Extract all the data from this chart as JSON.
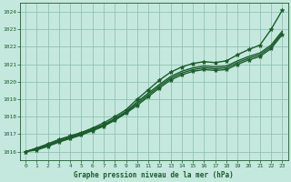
{
  "title": "Graphe pression niveau de la mer (hPa)",
  "background_color": "#c5e8de",
  "grid_color": "#88bbaa",
  "line_color": "#1a5c2a",
  "xlim": [
    -0.5,
    23.5
  ],
  "ylim": [
    1015.5,
    1024.5
  ],
  "xticks": [
    0,
    1,
    2,
    3,
    4,
    5,
    6,
    7,
    8,
    9,
    10,
    11,
    12,
    13,
    14,
    15,
    16,
    17,
    18,
    19,
    20,
    21,
    22,
    23
  ],
  "yticks": [
    1016,
    1017,
    1018,
    1019,
    1020,
    1021,
    1022,
    1023,
    1024
  ],
  "series": [
    {
      "x": [
        0,
        1,
        2,
        3,
        4,
        5,
        6,
        7,
        8,
        9,
        10,
        11,
        12,
        13,
        14,
        15,
        16,
        17,
        18,
        19,
        20,
        21,
        22,
        23
      ],
      "y": [
        1016.0,
        1016.2,
        1016.45,
        1016.7,
        1016.9,
        1017.1,
        1017.35,
        1017.65,
        1018.0,
        1018.4,
        1019.0,
        1019.55,
        1020.1,
        1020.55,
        1020.85,
        1021.05,
        1021.15,
        1021.1,
        1021.2,
        1021.55,
        1021.85,
        1022.1,
        1023.0,
        1024.1
      ],
      "marker": true,
      "lw": 1.0
    },
    {
      "x": [
        0,
        1,
        2,
        3,
        4,
        5,
        6,
        7,
        8,
        9,
        10,
        11,
        12,
        13,
        14,
        15,
        16,
        17,
        18,
        19,
        20,
        21,
        22,
        23
      ],
      "y": [
        1016.0,
        1016.2,
        1016.4,
        1016.65,
        1016.85,
        1017.05,
        1017.3,
        1017.55,
        1017.9,
        1018.3,
        1018.85,
        1019.35,
        1019.85,
        1020.3,
        1020.6,
        1020.8,
        1020.9,
        1020.85,
        1020.9,
        1021.2,
        1021.45,
        1021.65,
        1022.1,
        1022.9
      ],
      "marker": false,
      "lw": 1.0
    },
    {
      "x": [
        0,
        1,
        2,
        3,
        4,
        5,
        6,
        7,
        8,
        9,
        10,
        11,
        12,
        13,
        14,
        15,
        16,
        17,
        18,
        19,
        20,
        21,
        22,
        23
      ],
      "y": [
        1016.0,
        1016.15,
        1016.35,
        1016.6,
        1016.8,
        1017.0,
        1017.25,
        1017.5,
        1017.85,
        1018.25,
        1018.75,
        1019.25,
        1019.75,
        1020.2,
        1020.5,
        1020.7,
        1020.8,
        1020.75,
        1020.8,
        1021.1,
        1021.35,
        1021.55,
        1022.0,
        1022.8
      ],
      "marker": false,
      "lw": 1.0
    },
    {
      "x": [
        0,
        1,
        2,
        3,
        4,
        5,
        6,
        7,
        8,
        9,
        10,
        11,
        12,
        13,
        14,
        15,
        16,
        17,
        18,
        19,
        20,
        21,
        22,
        23
      ],
      "y": [
        1016.0,
        1016.1,
        1016.3,
        1016.55,
        1016.75,
        1016.95,
        1017.2,
        1017.45,
        1017.8,
        1018.2,
        1018.65,
        1019.15,
        1019.65,
        1020.1,
        1020.4,
        1020.6,
        1020.7,
        1020.65,
        1020.7,
        1021.0,
        1021.25,
        1021.45,
        1021.9,
        1022.7
      ],
      "marker": true,
      "lw": 1.0
    }
  ],
  "figsize": [
    3.2,
    2.0
  ],
  "dpi": 100
}
